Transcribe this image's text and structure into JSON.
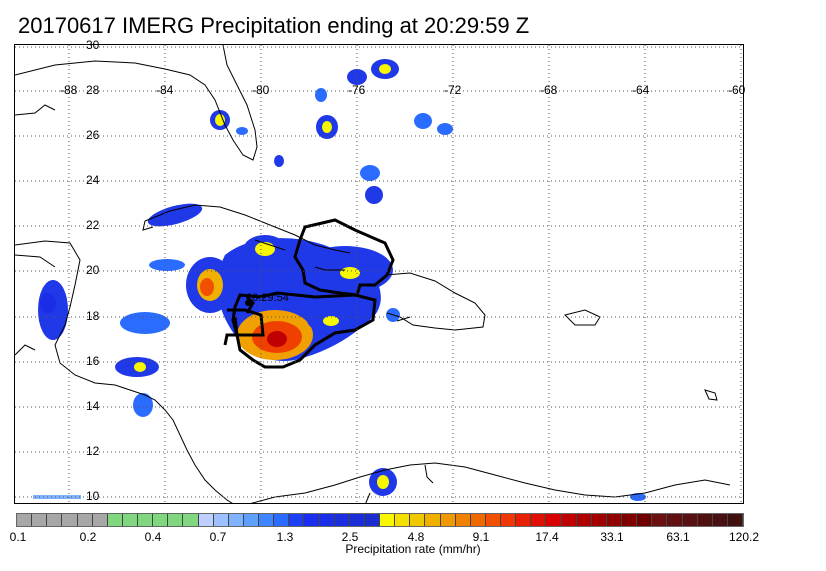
{
  "title": "20170617 IMERG Precipitation ending at 20:29:59 Z",
  "map": {
    "longitude_labels": [
      "-88",
      "-84",
      "-80",
      "-76",
      "-72",
      "-68",
      "-64",
      "-60"
    ],
    "latitude_labels": [
      "30",
      "28",
      "26",
      "24",
      "22",
      "20",
      "18",
      "16",
      "14",
      "12",
      "10"
    ],
    "track_time_label": "20:29:54",
    "lon_range": [
      -90,
      -60
    ],
    "lat_range": [
      9.5,
      30
    ],
    "grid": true
  },
  "colorbar": {
    "title": "Precipitation rate (mm/hr)",
    "tick_labels": [
      "0.1",
      "0.2",
      "0.4",
      "0.7",
      "1.3",
      "2.5",
      "4.8",
      "9.1",
      "17.4",
      "33.1",
      "63.1",
      "120.2"
    ],
    "colors": [
      "#a7a7a7",
      "#a7a7a7",
      "#a7a7a7",
      "#a7a7a7",
      "#a7a7a7",
      "#a7a7a7",
      "#7fd87f",
      "#7fd87f",
      "#7fd87f",
      "#7fd87f",
      "#7fd87f",
      "#7fd87f",
      "#bfcfff",
      "#9fc0ff",
      "#7fb2ff",
      "#5fa0ff",
      "#3d86ff",
      "#2a6cff",
      "#1a3ff8",
      "#1a2ef0",
      "#1a2ee8",
      "#1a2ee0",
      "#1a2ed8",
      "#1a2ed0",
      "#f7f700",
      "#f4e000",
      "#f0c800",
      "#f0b000",
      "#f09800",
      "#f08000",
      "#f06800",
      "#f05000",
      "#f03800",
      "#e82000",
      "#e01000",
      "#d80000",
      "#c00000",
      "#b00000",
      "#a00000",
      "#900000",
      "#800000",
      "#700000",
      "#6a1010",
      "#601010",
      "#581010",
      "#501010",
      "#481010",
      "#401010"
    ]
  }
}
